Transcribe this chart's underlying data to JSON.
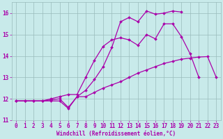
{
  "xlabel": "Windchill (Refroidissement éolien,°C)",
  "background_color": "#c8eaea",
  "grid_color": "#99bbbb",
  "line_color": "#aa00aa",
  "x": [
    0,
    1,
    2,
    3,
    4,
    5,
    6,
    7,
    8,
    9,
    10,
    11,
    12,
    13,
    14,
    15,
    16,
    17,
    18,
    19,
    20,
    21,
    22,
    23
  ],
  "line1": [
    11.9,
    11.9,
    11.9,
    11.9,
    11.9,
    11.9,
    11.55,
    12.1,
    12.1,
    12.3,
    12.5,
    12.65,
    12.8,
    13.0,
    13.2,
    13.35,
    13.5,
    13.65,
    13.75,
    13.85,
    13.9,
    13.95,
    13.97,
    13.0
  ],
  "line2": [
    11.9,
    11.9,
    11.9,
    11.9,
    12.0,
    12.1,
    12.2,
    12.2,
    13.0,
    13.8,
    14.45,
    14.75,
    14.85,
    14.75,
    14.5,
    15.0,
    14.8,
    15.5,
    15.5,
    14.9,
    14.1,
    13.0,
    null,
    null
  ],
  "line3": [
    11.9,
    11.9,
    11.9,
    11.9,
    11.95,
    12.0,
    11.6,
    12.1,
    12.4,
    12.9,
    13.5,
    14.4,
    15.6,
    15.8,
    15.6,
    16.1,
    15.95,
    16.0,
    16.1,
    16.05,
    null,
    null,
    null,
    null
  ],
  "xlim": [
    -0.5,
    23.5
  ],
  "ylim": [
    11.0,
    16.5
  ],
  "yticks": [
    11,
    12,
    13,
    14,
    15,
    16
  ],
  "xticks": [
    0,
    1,
    2,
    3,
    4,
    5,
    6,
    7,
    8,
    9,
    10,
    11,
    12,
    13,
    14,
    15,
    16,
    17,
    18,
    19,
    20,
    21,
    22,
    23
  ],
  "tick_fontsize": 5.5,
  "xlabel_fontsize": 5.5,
  "marker_size": 2.0,
  "line_width": 0.9
}
